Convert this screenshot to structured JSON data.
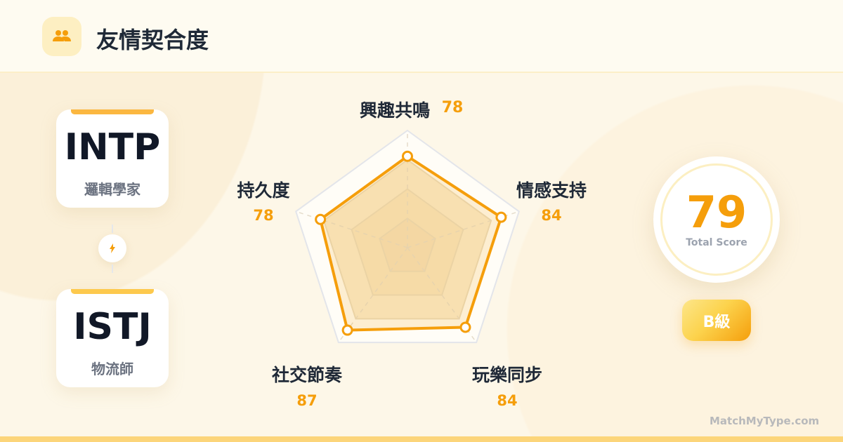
{
  "header": {
    "title": "友情契合度",
    "icon": "people-icon"
  },
  "types": [
    {
      "code": "INTP",
      "nickname": "邏輯學家"
    },
    {
      "code": "ISTJ",
      "nickname": "物流師"
    }
  ],
  "connector_icon": "lightning-icon",
  "chart_data": {
    "type": "radar",
    "categories": [
      "興趣共鳴",
      "情感支持",
      "玩樂同步",
      "社交節奏",
      "持久度"
    ],
    "values": [
      78,
      84,
      84,
      87,
      78
    ],
    "values_text": [
      "78",
      "84",
      "84",
      "87",
      "78"
    ],
    "range": [
      0,
      100
    ],
    "color": "#f59e0b"
  },
  "score": {
    "value": "79",
    "label": "Total Score"
  },
  "grade": "B級",
  "brand": "MatchMyType.com",
  "colors": {
    "accent": "#f59e0b",
    "background": "#fdf7e8"
  }
}
